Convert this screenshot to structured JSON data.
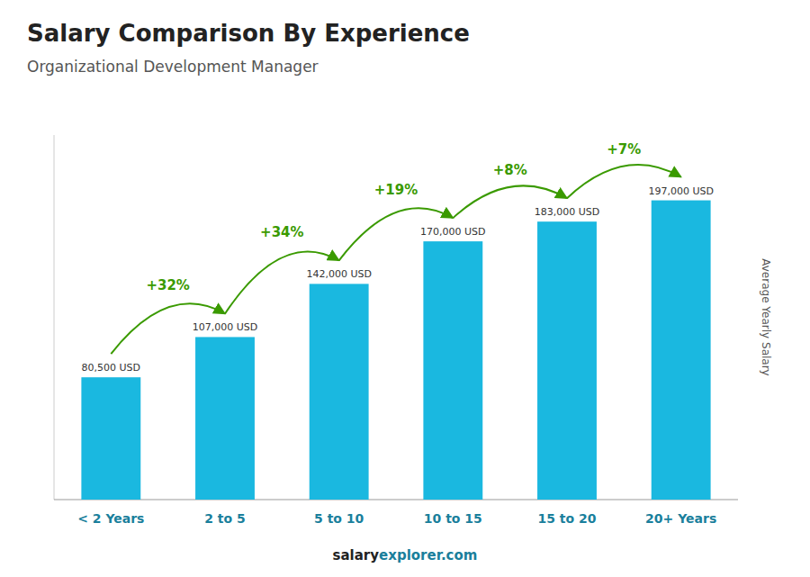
{
  "chart_data": {
    "type": "bar",
    "title": "Salary Comparison By Experience",
    "subtitle": "Organizational Development Manager",
    "y_label": "Average Yearly Salary",
    "categories": [
      "< 2 Years",
      "2 to 5",
      "5 to 10",
      "10 to 15",
      "15 to 20",
      "20+ Years"
    ],
    "values": [
      80500,
      107000,
      142000,
      170000,
      183000,
      197000
    ],
    "value_labels": [
      "80,500 USD",
      "107,000 USD",
      "142,000 USD",
      "170,000 USD",
      "183,000 USD",
      "197,000 USD"
    ],
    "data_labels": true,
    "annotations": [
      "+32%",
      "+34%",
      "+19%",
      "+8%",
      "+7%"
    ],
    "footer": [
      "salary",
      "explorer.com"
    ],
    "color": "#1ab8e0",
    "ylim": [
      0,
      240000
    ],
    "tick_labels": "x",
    "grid": false
  }
}
